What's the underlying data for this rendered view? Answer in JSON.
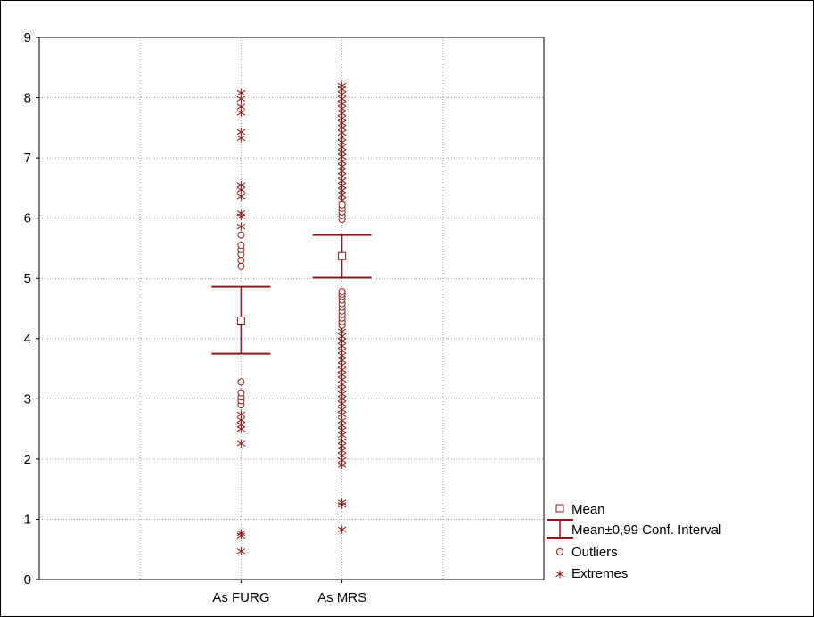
{
  "chart_data": {
    "type": "scatter",
    "title": "",
    "xlabel": "",
    "ylabel": "",
    "categories": [
      "As FURG",
      "As MRS"
    ],
    "ylim": [
      0,
      9
    ],
    "yticks": [
      "0",
      "1",
      "2",
      "3",
      "4",
      "5",
      "6",
      "7",
      "8",
      "9"
    ],
    "grid": true,
    "legend_position": "bottom-right",
    "color": "#8b1a1a",
    "legend": {
      "mean": "Mean",
      "ci": "Mean±0,99 Conf. Interval",
      "outliers": "Outliers",
      "extremes": "Extremes"
    },
    "series": [
      {
        "category": "As FURG",
        "mean": 4.3,
        "ci_low": 3.75,
        "ci_high": 4.86,
        "outliers": [
          5.2,
          5.3,
          5.4,
          5.48,
          5.55,
          5.72,
          2.9,
          2.97,
          3.03,
          3.1,
          3.28
        ],
        "extremes": [
          0.47,
          0.73,
          0.77,
          2.26,
          2.5,
          2.57,
          2.65,
          2.74,
          7.33,
          7.43,
          7.75,
          7.85,
          7.98,
          8.08,
          5.86,
          6.03,
          6.08,
          6.36,
          6.47,
          6.55
        ]
      },
      {
        "category": "As MRS",
        "mean": 5.37,
        "ci_low": 5.01,
        "ci_high": 5.72,
        "outliers": [
          4.22,
          4.28,
          4.34,
          4.4,
          4.46,
          4.52,
          4.58,
          4.64,
          4.7,
          4.74,
          4.78,
          5.98,
          6.04,
          6.1,
          6.16,
          6.22
        ],
        "extremes": [
          0.83,
          1.24,
          1.28,
          1.9,
          1.98,
          2.06,
          2.14,
          2.22,
          2.3,
          2.4,
          2.48,
          2.56,
          2.64,
          2.74,
          2.82,
          2.92,
          3.0,
          3.08,
          3.16,
          3.24,
          3.32,
          3.4,
          3.48,
          3.56,
          3.64,
          3.72,
          3.8,
          3.88,
          3.96,
          4.04,
          4.12,
          6.3,
          6.38,
          6.46,
          6.54,
          6.62,
          6.7,
          6.78,
          6.86,
          6.94,
          7.02,
          7.1,
          7.18,
          7.26,
          7.34,
          7.42,
          7.5,
          7.58,
          7.66,
          7.74,
          7.82,
          7.9,
          7.98,
          8.06,
          8.14,
          8.2
        ]
      }
    ]
  }
}
